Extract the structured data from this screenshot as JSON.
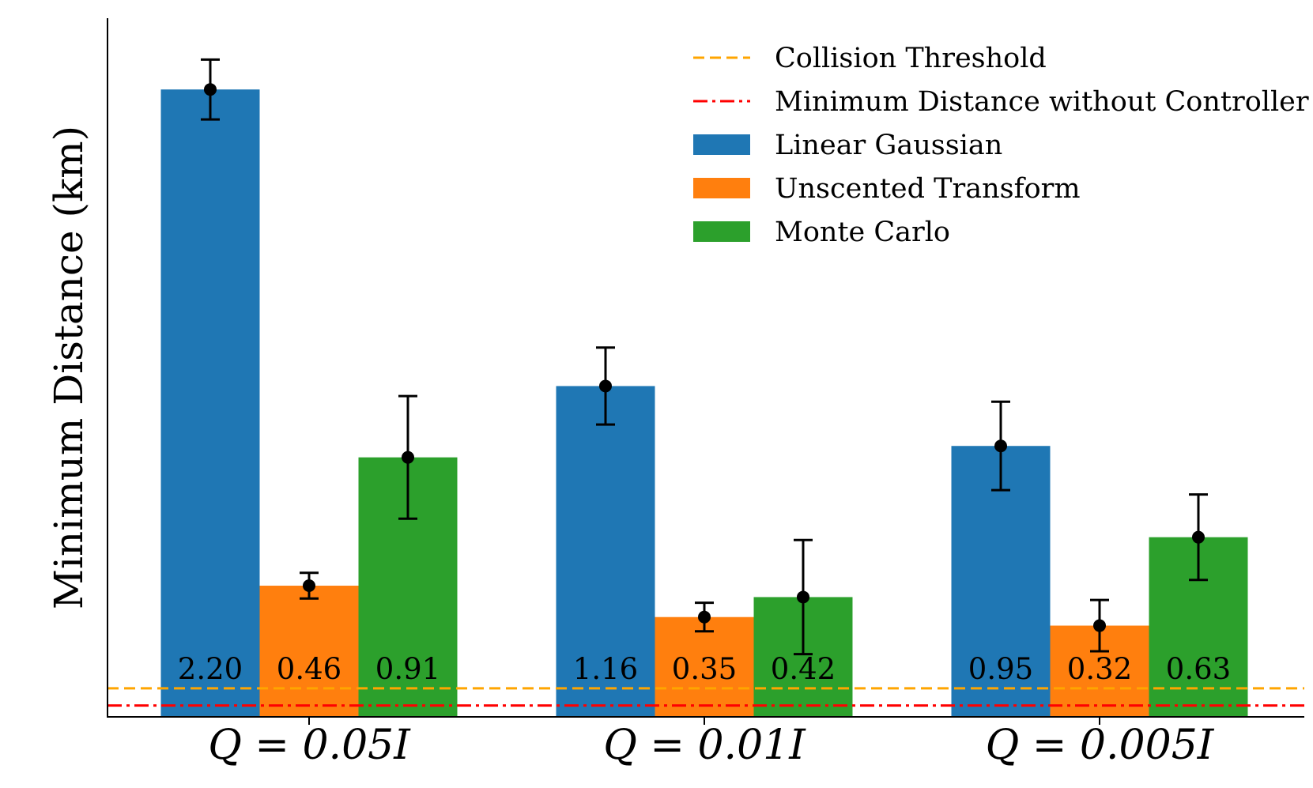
{
  "chart_data": {
    "type": "bar",
    "title": "",
    "xlabel": "",
    "ylabel": "Minimum Distance (km)",
    "ylim": [
      0,
      2.45
    ],
    "grid": false,
    "legend_position": "top-right",
    "categories": [
      "Q = 0.05I",
      "Q = 0.01I",
      "Q = 0.005I"
    ],
    "series": [
      {
        "name": "Linear Gaussian",
        "color": "#1f77b4",
        "values": [
          2.2,
          1.16,
          0.95
        ],
        "error": [
          0.105,
          0.135,
          0.155
        ],
        "labels": [
          "2.20",
          "1.16",
          "0.95"
        ]
      },
      {
        "name": "Unscented Transform",
        "color": "#ff7f0e",
        "values": [
          0.46,
          0.35,
          0.32
        ],
        "error": [
          0.045,
          0.05,
          0.09
        ],
        "labels": [
          "0.46",
          "0.35",
          "0.32"
        ]
      },
      {
        "name": "Monte Carlo",
        "color": "#2ca02c",
        "values": [
          0.91,
          0.42,
          0.63
        ],
        "error": [
          0.215,
          0.2,
          0.15
        ],
        "labels": [
          "0.91",
          "0.42",
          "0.63"
        ]
      }
    ],
    "reference_lines": [
      {
        "name": "Collision Threshold",
        "value": 0.1,
        "color": "#ffa500",
        "style": "dashed"
      },
      {
        "name": "Minimum Distance without Controller",
        "value": 0.04,
        "color": "#ff0000",
        "style": "dashdot"
      }
    ]
  }
}
